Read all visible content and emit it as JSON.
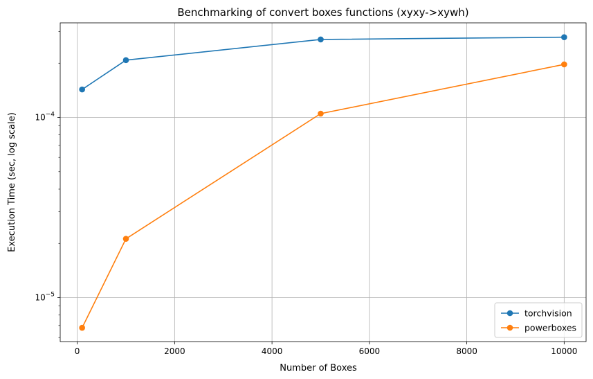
{
  "chart_data": {
    "type": "line",
    "title": "Benchmarking of convert boxes functions (xyxy->xywh)",
    "xlabel": "Number of Boxes",
    "ylabel": "Execution Time (sec, log scale)",
    "xlim": [
      -350,
      10450
    ],
    "ylim": [
      5.7e-06,
      0.000335
    ],
    "yscale": "log",
    "grid": true,
    "legend_position": "bottom-right",
    "xticks": [
      0,
      2000,
      4000,
      6000,
      8000,
      10000
    ],
    "xtick_labels": [
      "0",
      "2000",
      "4000",
      "6000",
      "8000",
      "10000"
    ],
    "yticks": [
      0.0001,
      1e-05
    ],
    "ytick_labels": [
      {
        "base": "10",
        "exp": "−4"
      },
      {
        "base": "10",
        "exp": "−5"
      }
    ],
    "series": [
      {
        "name": "torchvision",
        "color": "#1f77b4",
        "x": [
          100,
          1000,
          5000,
          10000
        ],
        "y": [
          0.000143,
          0.000208,
          0.000271,
          0.000279
        ]
      },
      {
        "name": "powerboxes",
        "color": "#ff7f0e",
        "x": [
          100,
          1000,
          5000,
          10000
        ],
        "y": [
          6.8e-06,
          2.12e-05,
          0.000105,
          0.000197
        ]
      }
    ]
  }
}
